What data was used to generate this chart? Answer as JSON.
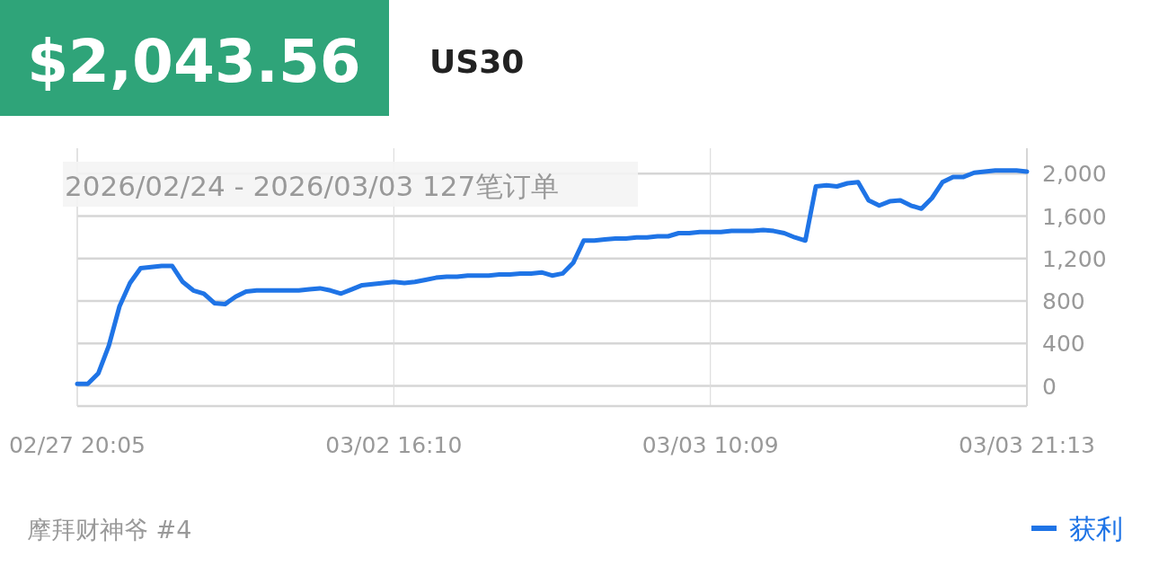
{
  "chart_data": {
    "type": "line",
    "title": "$2,043.56",
    "subtitle": "US30",
    "annotations": [
      "2026/02/24 - 2026/03/03  127笔订单",
      "摩拜财神爷 #4"
    ],
    "categories": [
      "02/27 20:05",
      null,
      null,
      null,
      null,
      null,
      null,
      null,
      null,
      null,
      null,
      null,
      null,
      null,
      null,
      null,
      null,
      null,
      null,
      null,
      null,
      null,
      null,
      null,
      null,
      null,
      null,
      null,
      null,
      null,
      "03/02 16:10",
      null,
      null,
      null,
      null,
      null,
      null,
      null,
      null,
      null,
      null,
      null,
      null,
      null,
      null,
      null,
      null,
      null,
      null,
      null,
      null,
      null,
      null,
      null,
      null,
      null,
      null,
      null,
      null,
      null,
      "03/03 10:09",
      null,
      null,
      null,
      null,
      null,
      null,
      null,
      null,
      null,
      null,
      null,
      null,
      null,
      null,
      null,
      null,
      null,
      null,
      null,
      null,
      null,
      null,
      null,
      null,
      null,
      null,
      null,
      null,
      null,
      "03/03 21:13"
    ],
    "series": [
      {
        "name": "获利",
        "color": "#1f74e6",
        "values": [
          20,
          20,
          120,
          380,
          750,
          970,
          1110,
          1120,
          1130,
          1130,
          980,
          900,
          870,
          780,
          770,
          840,
          890,
          900,
          900,
          900,
          900,
          900,
          910,
          920,
          900,
          870,
          910,
          950,
          960,
          970,
          980,
          970,
          980,
          1000,
          1020,
          1030,
          1030,
          1040,
          1040,
          1040,
          1050,
          1050,
          1060,
          1060,
          1070,
          1040,
          1060,
          1160,
          1370,
          1370,
          1380,
          1390,
          1390,
          1400,
          1400,
          1410,
          1410,
          1440,
          1440,
          1450,
          1450,
          1450,
          1460,
          1460,
          1460,
          1470,
          1460,
          1440,
          1400,
          1370,
          1880,
          1890,
          1880,
          1910,
          1920,
          1750,
          1700,
          1740,
          1750,
          1700,
          1670,
          1770,
          1920,
          1970,
          1970,
          2010,
          2020,
          2030,
          2030,
          2030,
          2020
        ]
      }
    ],
    "ylim": [
      -190,
      2240
    ],
    "yticks": [
      0,
      400,
      800,
      {
        "value": 1200,
        "label": "1,200"
      },
      {
        "value": 1600,
        "label": "1,600"
      },
      {
        "value": 2000,
        "label": "2,000"
      }
    ],
    "grid": true,
    "legend": "bottom right"
  }
}
